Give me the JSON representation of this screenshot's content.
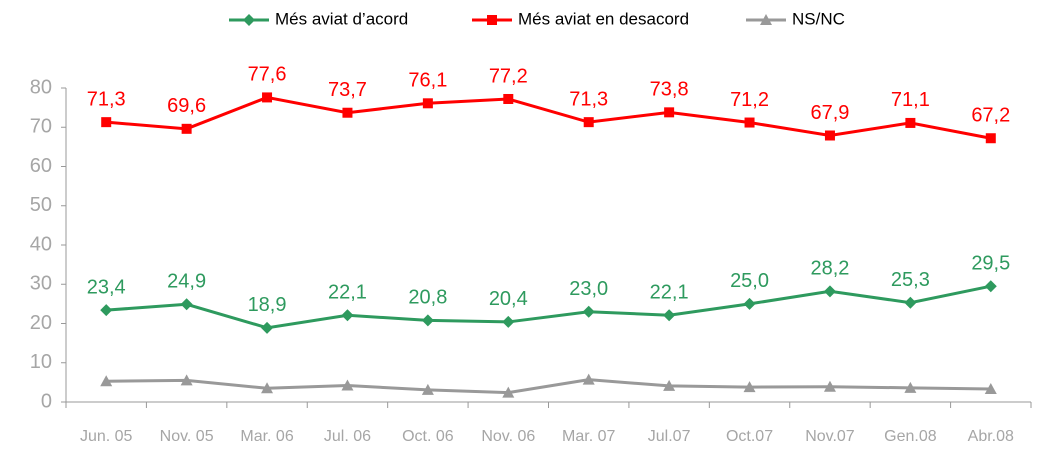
{
  "chart_data": {
    "type": "line",
    "categories": [
      "Jun. 05",
      "Nov. 05",
      "Mar. 06",
      "Jul. 06",
      "Oct. 06",
      "Nov. 06",
      "Mar. 07",
      "Jul.07",
      "Oct.07",
      "Nov.07",
      "Gen.08",
      "Abr.08"
    ],
    "series": [
      {
        "name": "Més aviat d’acord",
        "color": "#2e9a5e",
        "marker": "diamond",
        "values": [
          23.4,
          24.9,
          18.9,
          22.1,
          20.8,
          20.4,
          23.0,
          22.1,
          25.0,
          28.2,
          25.3,
          29.5
        ],
        "value_labels": [
          "23,4",
          "24,9",
          "18,9",
          "22,1",
          "20,8",
          "20,4",
          "23,0",
          "22,1",
          "25,0",
          "28,2",
          "25,3",
          "29,5"
        ]
      },
      {
        "name": "Més aviat en desacord",
        "color": "#ff0000",
        "marker": "square",
        "values": [
          71.3,
          69.6,
          77.6,
          73.7,
          76.1,
          77.2,
          71.3,
          73.8,
          71.2,
          67.9,
          71.1,
          67.2
        ],
        "value_labels": [
          "71,3",
          "69,6",
          "77,6",
          "73,7",
          "76,1",
          "77,2",
          "71,3",
          "73,8",
          "71,2",
          "67,9",
          "71,1",
          "67,2"
        ]
      },
      {
        "name": "NS/NC",
        "color": "#999999",
        "marker": "triangle",
        "values": [
          5.3,
          5.5,
          3.5,
          4.2,
          3.1,
          2.4,
          5.7,
          4.1,
          3.8,
          3.9,
          3.6,
          3.3
        ]
      }
    ],
    "ylim": [
      0,
      80
    ],
    "yticks": [
      0,
      10,
      20,
      30,
      40,
      50,
      60,
      70,
      80
    ],
    "legend": "top"
  }
}
